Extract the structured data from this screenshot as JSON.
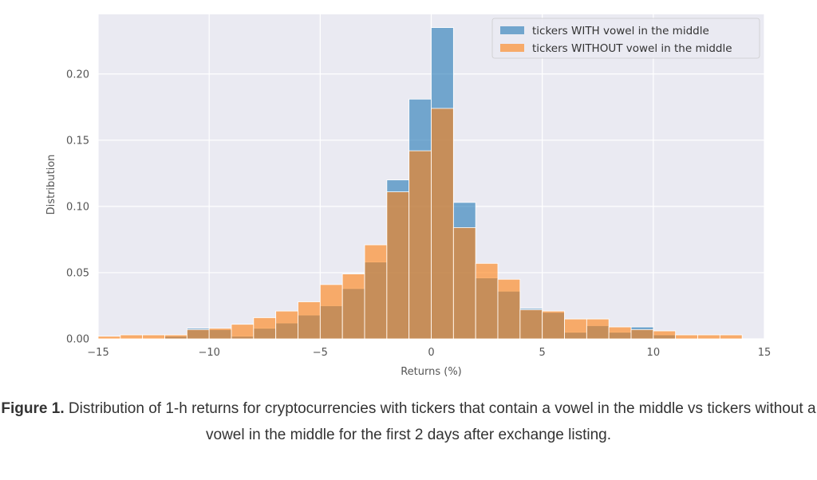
{
  "chart_data": {
    "type": "bar",
    "bin_edges": [
      -15,
      -14,
      -13,
      -12,
      -11,
      -10,
      -9,
      -8,
      -7,
      -6,
      -5,
      -4,
      -3,
      -2,
      -1,
      0,
      1,
      2,
      3,
      4,
      5,
      6,
      7,
      8,
      9,
      10,
      11,
      12,
      13,
      14
    ],
    "series": [
      {
        "name": "tickers WITH vowel in the middle",
        "color": "#1f77b4",
        "values": [
          0.0005,
          0.0005,
          0.0005,
          0.002,
          0.008,
          0.007,
          0.002,
          0.008,
          0.012,
          0.018,
          0.025,
          0.038,
          0.058,
          0.12,
          0.181,
          0.235,
          0.103,
          0.046,
          0.036,
          0.023,
          0.02,
          0.005,
          0.01,
          0.005,
          0.009,
          0.003,
          0,
          0,
          0
        ]
      },
      {
        "name": "tickers WITHOUT vowel in the middle",
        "color": "#ff7f0e",
        "values": [
          0.002,
          0.003,
          0.003,
          0.003,
          0.007,
          0.008,
          0.011,
          0.016,
          0.021,
          0.028,
          0.041,
          0.049,
          0.071,
          0.111,
          0.142,
          0.174,
          0.084,
          0.057,
          0.045,
          0.022,
          0.021,
          0.015,
          0.015,
          0.009,
          0.007,
          0.006,
          0.003,
          0.003,
          0.003
        ]
      }
    ],
    "xlabel": "Returns (%)",
    "ylabel": "Distribution",
    "xlim": [
      -15,
      15
    ],
    "ylim": [
      0,
      0.245
    ],
    "xticks": [
      -15,
      -10,
      -5,
      0,
      5,
      10,
      15
    ],
    "xtick_labels": [
      "−15",
      "−10",
      "−5",
      "0",
      "5",
      "10",
      "15"
    ],
    "yticks": [
      0.0,
      0.05,
      0.1,
      0.15,
      0.2
    ],
    "ytick_labels": [
      "0.00",
      "0.05",
      "0.10",
      "0.15",
      "0.20"
    ],
    "grid": true,
    "legend_position": "top-right"
  },
  "caption": {
    "label": "Figure 1.",
    "text": " Distribution of 1-h returns for cryptocurrencies with tickers that contain a vowel in the middle vs tickers without a vowel in the middle for the first 2 days after exchange listing."
  }
}
